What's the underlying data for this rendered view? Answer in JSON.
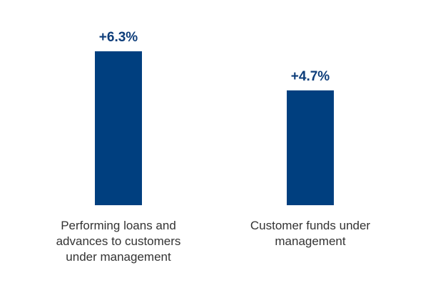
{
  "chart_data": {
    "type": "bar",
    "categories": [
      "Performing loans and advances to customers under management",
      "Customer funds under management"
    ],
    "values": [
      6.3,
      4.7
    ],
    "value_labels": [
      "+6.3%",
      "+4.7%"
    ],
    "color": "#003f7f"
  }
}
